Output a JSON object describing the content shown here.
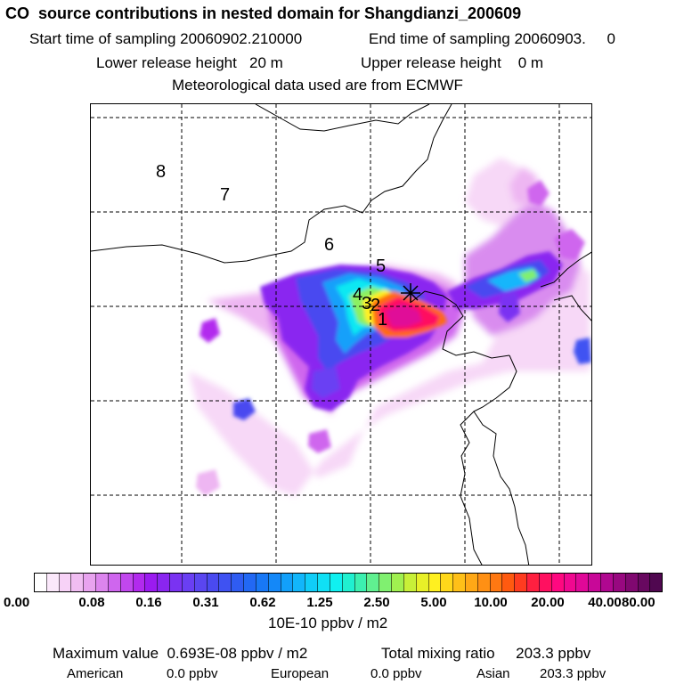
{
  "header": {
    "title": "CO  source contributions in nested domain for Shangdianzi_200609",
    "start_label": "Start time of sampling 20060902.210000",
    "end_label": "End time of sampling 20060903.     0",
    "lower_label": "Lower release height   20 m",
    "upper_label": "Upper release height    0 m",
    "met_label": "Meteorological data used are from ECMWF"
  },
  "map": {
    "contour_labels": [
      "8",
      "7",
      "6",
      "5",
      "4",
      "3",
      "2",
      "1"
    ],
    "receptor_marker": "plus-star"
  },
  "colorbar": {
    "tick_labels": [
      "0.00",
      "0.08",
      "0.16",
      "0.31",
      "0.62",
      "1.25",
      "2.50",
      "5.00",
      "10.00",
      "20.00",
      "40.00",
      "80.00"
    ],
    "unit_label": "10E-10 ppbv / m2",
    "colors": [
      "#ffffff",
      "#fbe8fb",
      "#f7d2f7",
      "#f0bdf2",
      "#e8a3ef",
      "#dc85ee",
      "#cf66ee",
      "#c147ee",
      "#b22aee",
      "#9b1bf0",
      "#8a26f0",
      "#7a33f2",
      "#6a3ff3",
      "#5a46f0",
      "#4a4af0",
      "#3f52f2",
      "#2f5cf2",
      "#2268f4",
      "#1878f6",
      "#1488f8",
      "#12a0fa",
      "#12b6fb",
      "#10cdf8",
      "#10e0f5",
      "#10f0f0",
      "#20f0d0",
      "#3cf0b0",
      "#60f090",
      "#80f070",
      "#a0f050",
      "#c8f038",
      "#e8f028",
      "#fff020",
      "#ffd81a",
      "#ffc018",
      "#ffa816",
      "#ff9014",
      "#ff7812",
      "#ff5a10",
      "#ff3c20",
      "#ff2040",
      "#ff1060",
      "#ff0880",
      "#f00890",
      "#e00898",
      "#c80898",
      "#b00890",
      "#980880",
      "#800870",
      "#680860",
      "#500850"
    ]
  },
  "footer": {
    "max_label": "Maximum value  0.693E-08 ppbv / m2",
    "total_label": "Total mixing ratio     203.3 ppbv",
    "american_label": "American",
    "american_value": "0.0 ppbv",
    "european_label": "European",
    "european_value": "0.0 ppbv",
    "asian_label": "Asian",
    "asian_value": "203.3 ppbv"
  }
}
